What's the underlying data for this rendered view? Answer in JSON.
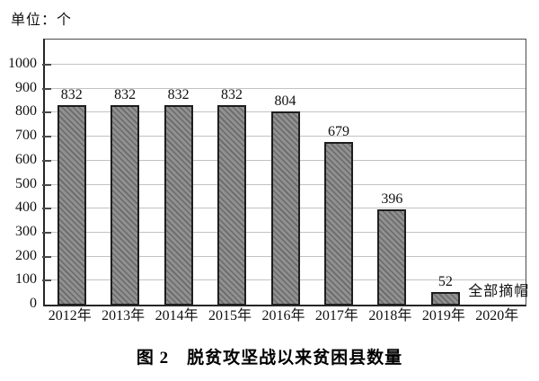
{
  "figure": {
    "unit_label": "单位：个",
    "caption": "图 2　脱贫攻坚战以来贫困县数量"
  },
  "chart_data": {
    "type": "bar",
    "title": "图 2　脱贫攻坚战以来贫困县数量",
    "unit_label": "单位：个",
    "categories": [
      "2012年",
      "2013年",
      "2014年",
      "2015年",
      "2016年",
      "2017年",
      "2018年",
      "2019年",
      "2020年"
    ],
    "values": [
      832,
      832,
      832,
      832,
      804,
      679,
      396,
      52,
      0
    ],
    "bar_labels": [
      "832",
      "832",
      "832",
      "832",
      "804",
      "679",
      "396",
      "52",
      ""
    ],
    "annotation": {
      "category": "2020年",
      "text": "全部摘帽"
    },
    "xlabel": "",
    "ylabel": "单位：个",
    "ylim": [
      0,
      1000
    ],
    "y_ticks": [
      0,
      100,
      200,
      300,
      400,
      500,
      600,
      700,
      800,
      900,
      1000
    ],
    "grid": "horizontal",
    "legend": "none",
    "colors": {
      "bar_fill": "#909090",
      "bar_hatch": "#696969",
      "bar_border": "#1e1e1e",
      "gridline": "#c2c2c2",
      "axis": "#262626",
      "text": "#111111",
      "background": "#ffffff"
    }
  }
}
